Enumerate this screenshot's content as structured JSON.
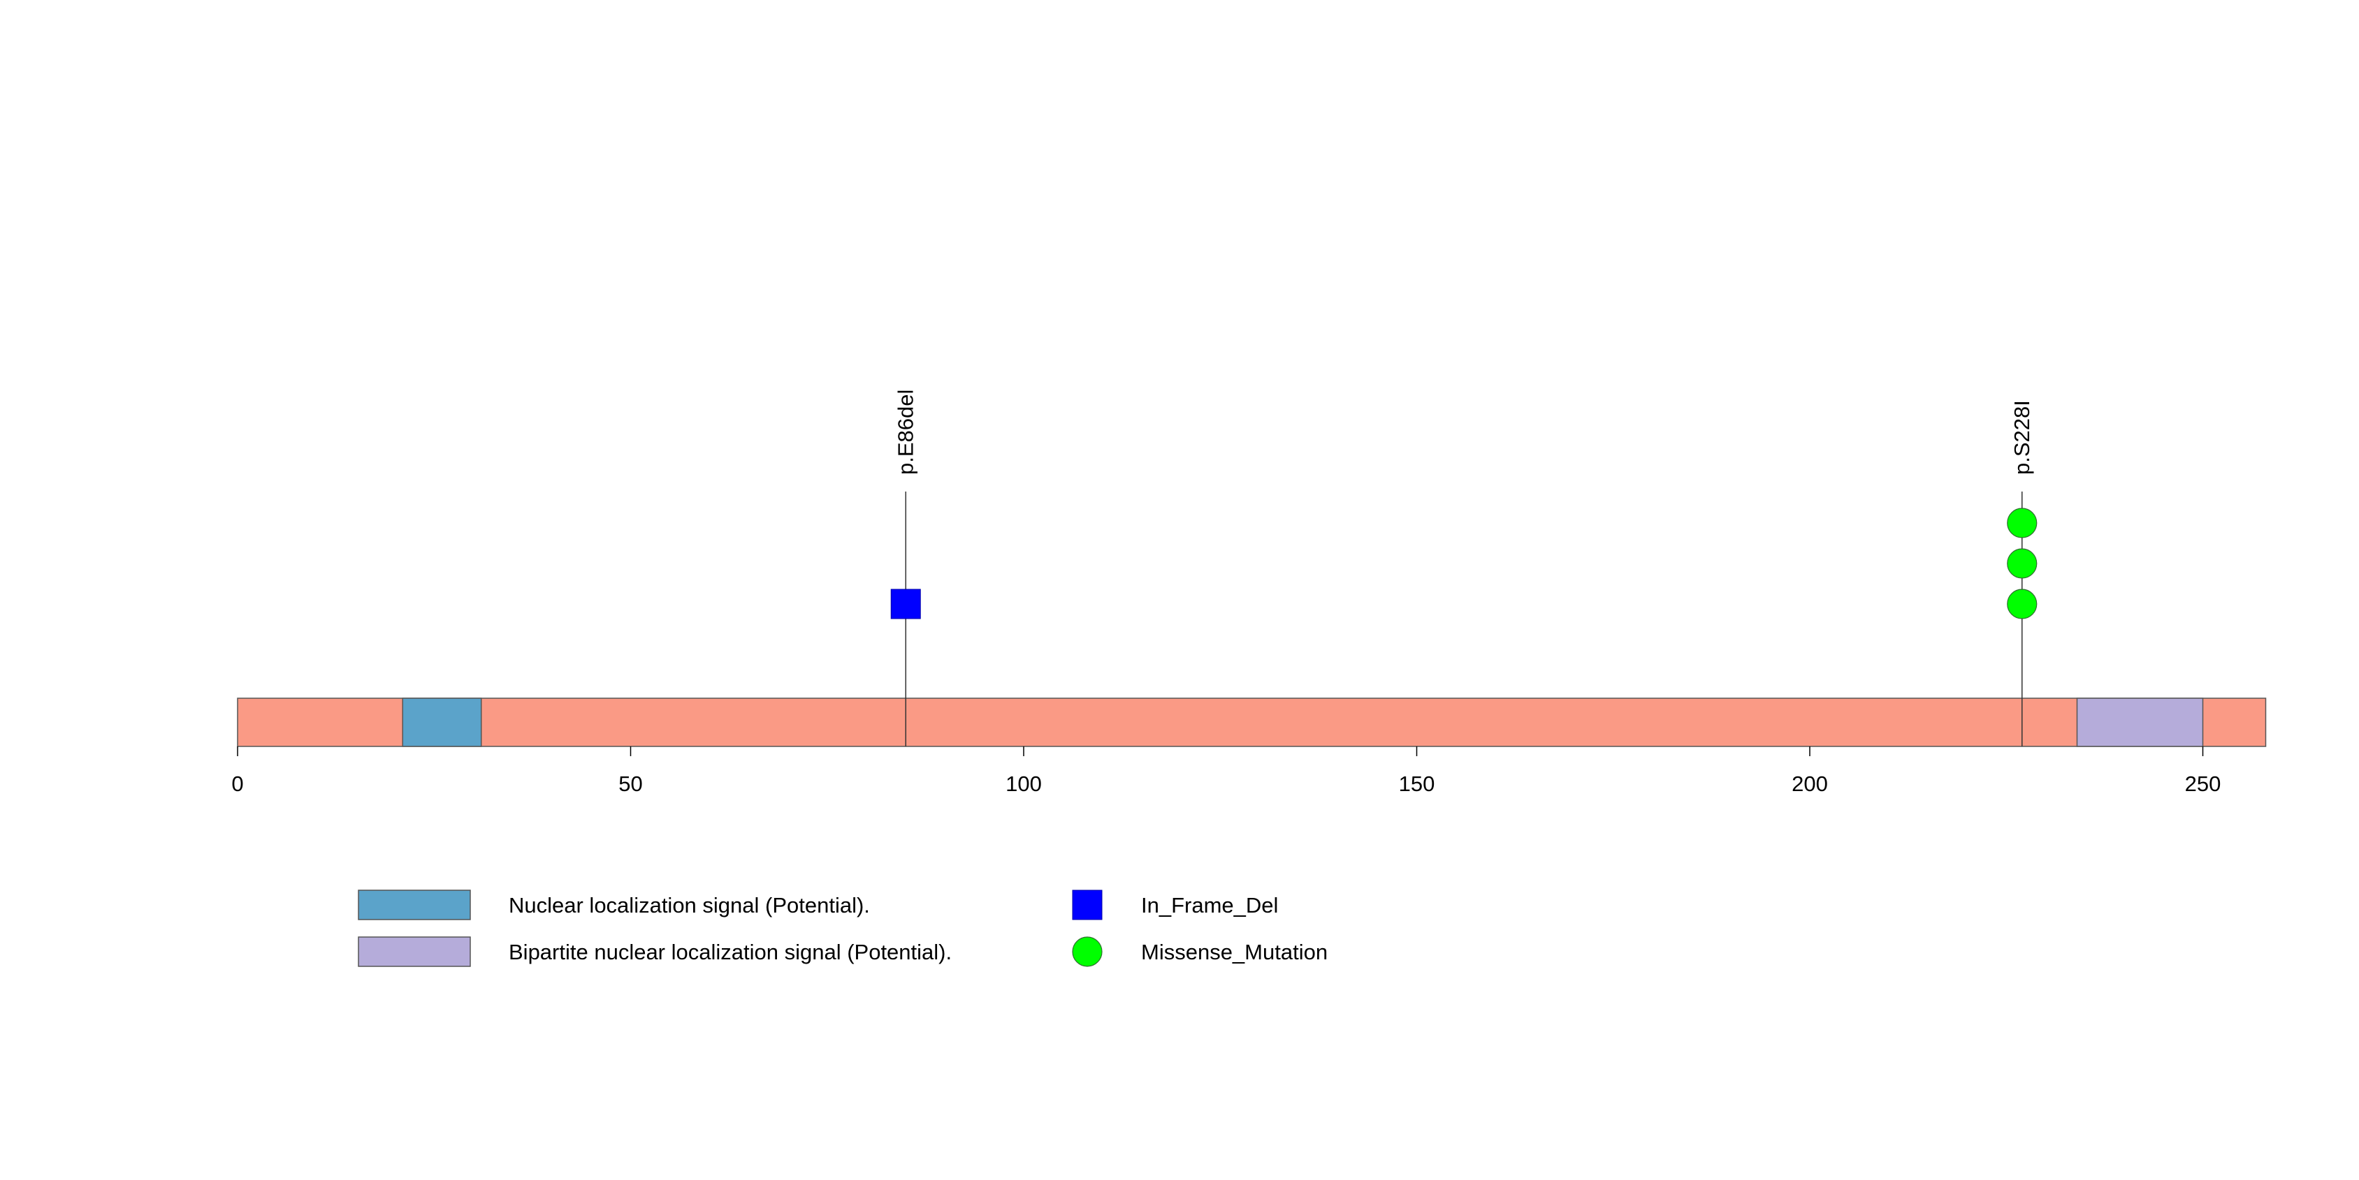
{
  "chart_data": {
    "type": "lollipop",
    "title": "",
    "xlabel": "",
    "ylabel": "",
    "protein_length": 258,
    "xlim": [
      0,
      258
    ],
    "x_ticks": [
      0,
      50,
      100,
      150,
      200,
      250
    ],
    "x_tick_labels": [
      "0",
      "50",
      "100",
      "150",
      "200",
      "250"
    ],
    "backbone_color": "#FA9A85",
    "domains": [
      {
        "name": "Nuclear localization signal (Potential).",
        "start": 21,
        "end": 31,
        "color": "#5BA3CA"
      },
      {
        "name": "Bipartite nuclear localization signal (Potential).",
        "start": 234,
        "end": 250,
        "color": "#B5ACDA"
      }
    ],
    "mutations": [
      {
        "label": "p.E86del",
        "position": 85,
        "count": 1,
        "type": "In_Frame_Del"
      },
      {
        "label": "p.S228I",
        "position": 227,
        "count": 3,
        "type": "Missense_Mutation"
      }
    ],
    "mutation_types": [
      {
        "name": "In_Frame_Del",
        "shape": "square",
        "color": "#0000FF"
      },
      {
        "name": "Missense_Mutation",
        "shape": "circle",
        "color": "#00FF00"
      }
    ],
    "legend": {
      "domains": [
        "Nuclear localization signal (Potential).",
        "Bipartite nuclear localization signal (Potential)."
      ],
      "mutation_types": [
        "In_Frame_Del",
        "Missense_Mutation"
      ]
    }
  }
}
